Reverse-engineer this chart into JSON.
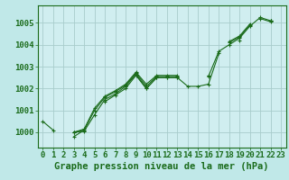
{
  "title": "",
  "xlabel": "Graphe pression niveau de la mer (hPa)",
  "background_color": "#c0e8e8",
  "plot_bg_color": "#d0eef0",
  "line_color": "#1a6b1a",
  "grid_color": "#a8cccc",
  "ylim": [
    999.3,
    1005.8
  ],
  "xlim": [
    -0.5,
    23.5
  ],
  "yticks": [
    1000,
    1001,
    1002,
    1003,
    1004,
    1005
  ],
  "xticks": [
    0,
    1,
    2,
    3,
    4,
    5,
    6,
    7,
    8,
    9,
    10,
    11,
    12,
    13,
    14,
    15,
    16,
    17,
    18,
    19,
    20,
    21,
    22,
    23
  ],
  "series": [
    [
      1000.5,
      1000.1,
      null,
      999.8,
      1000.1,
      null,
      1001.4,
      1001.7,
      1002.0,
      1002.6,
      1002.0,
      1002.5,
      1002.5,
      1002.5,
      1002.1,
      1002.1,
      1002.2,
      1003.6,
      null,
      1004.2,
      null,
      1005.2,
      1005.05,
      null
    ],
    [
      null,
      null,
      null,
      1000.0,
      1000.05,
      1000.8,
      1001.5,
      1001.75,
      1002.1,
      1002.65,
      1002.0,
      1002.5,
      1002.5,
      1002.5,
      null,
      null,
      1002.55,
      1003.7,
      1004.0,
      1004.3,
      1004.85,
      1005.25,
      1005.1,
      null
    ],
    [
      null,
      null,
      null,
      1000.0,
      1000.1,
      1001.0,
      1001.6,
      1001.85,
      1002.15,
      1002.7,
      1002.1,
      1002.55,
      1002.55,
      1002.55,
      null,
      null,
      1002.6,
      null,
      1004.1,
      1004.35,
      1004.9,
      null,
      1005.1,
      null
    ],
    [
      null,
      null,
      null,
      1000.0,
      1000.15,
      1001.1,
      1001.65,
      1001.9,
      1002.2,
      1002.75,
      1002.2,
      1002.6,
      1002.6,
      1002.6,
      null,
      null,
      1002.6,
      null,
      1004.15,
      1004.4,
      1004.95,
      null,
      1005.1,
      null
    ]
  ],
  "font_color": "#1a6b1a",
  "xlabel_fontsize": 7.5,
  "tick_fontsize": 6.5,
  "ylabel_fontsize": 6.5
}
